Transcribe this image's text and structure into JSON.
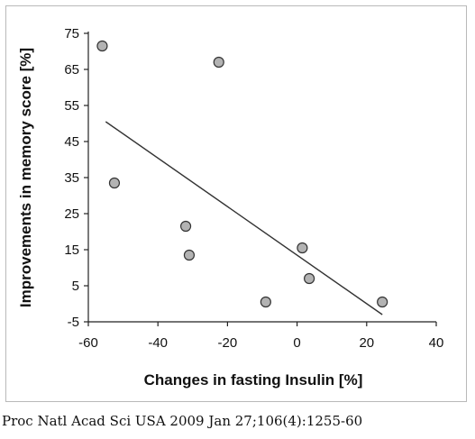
{
  "chart_data": {
    "type": "scatter",
    "xlabel": "Changes in fasting Insulin [%]",
    "ylabel": "Improvements in memory score [%]",
    "xlim": [
      -60,
      40
    ],
    "ylim": [
      -5,
      75
    ],
    "xticks": [
      "-60",
      "-40",
      "-20",
      "0",
      "20",
      "40"
    ],
    "yticks": [
      "75",
      "65",
      "55",
      "45",
      "35",
      "25",
      "15",
      "5",
      "-5"
    ],
    "series": [
      {
        "points": [
          {
            "x": -56,
            "y": 71.5
          },
          {
            "x": -52.5,
            "y": 33.5
          },
          {
            "x": -32,
            "y": 21.5
          },
          {
            "x": -31,
            "y": 13.5
          },
          {
            "x": -22.5,
            "y": 67
          },
          {
            "x": -9,
            "y": 0.5
          },
          {
            "x": 1.5,
            "y": 15.5
          },
          {
            "x": 3.5,
            "y": 7
          },
          {
            "x": 24.5,
            "y": 0.5
          }
        ]
      }
    ],
    "trendline": {
      "x": [
        -55,
        24.5
      ],
      "y": [
        50.5,
        -3
      ]
    },
    "marker_fill": "#b3b3b3",
    "marker_stroke": "#333333",
    "line_color": "#333333",
    "grid": false,
    "legend": "none"
  },
  "citation": "Proc Natl Acad Sci USA 2009 Jan 27;106(4):1255-60"
}
